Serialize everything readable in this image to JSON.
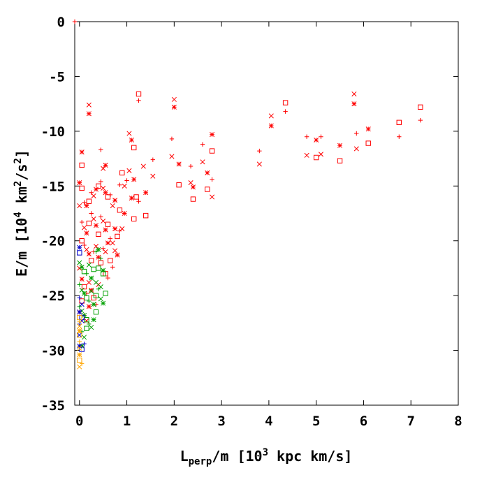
{
  "chart_data": {
    "type": "scatter",
    "title": "",
    "xlabel": {
      "base": "L",
      "sub": "perp",
      "rest": "/m [10",
      "sup": "3",
      "tail": " kpc km/s]"
    },
    "ylabel": {
      "a": "E/m [10",
      "sup1": "4",
      "b": " km",
      "sup2": "2",
      "c": "/s",
      "sup3": "2",
      "d": "]"
    },
    "xlim": [
      -0.1,
      8
    ],
    "ylim": [
      -35,
      0
    ],
    "xticks": [
      0,
      1,
      2,
      3,
      4,
      5,
      6,
      7,
      8
    ],
    "yticks": [
      0,
      -5,
      -10,
      -15,
      -20,
      -25,
      -30,
      -35
    ],
    "grid": false,
    "legend": "none",
    "markers": [
      "plus",
      "cross",
      "star",
      "square"
    ],
    "series": [
      {
        "color": "#ff0000",
        "points": [
          [
            -0.1,
            0
          ],
          [
            0.2,
            -7.6
          ],
          [
            0.2,
            -8.4
          ],
          [
            1.25,
            -6.6
          ],
          [
            1.25,
            -7.2
          ],
          [
            2.0,
            -7.1
          ],
          [
            2.0,
            -7.8
          ],
          [
            4.35,
            -7.4
          ],
          [
            4.35,
            -8.2
          ],
          [
            5.8,
            -6.6
          ],
          [
            5.8,
            -7.5
          ],
          [
            7.2,
            -7.8
          ],
          [
            7.2,
            -9.0
          ],
          [
            4.05,
            -8.6
          ],
          [
            4.05,
            -9.5
          ],
          [
            6.75,
            -9.2
          ],
          [
            6.75,
            -10.5
          ],
          [
            1.05,
            -10.2
          ],
          [
            1.1,
            -10.8
          ],
          [
            1.15,
            -11.5
          ],
          [
            1.95,
            -10.7
          ],
          [
            1.95,
            -12.3
          ],
          [
            2.8,
            -10.3
          ],
          [
            2.8,
            -11.8
          ],
          [
            4.8,
            -10.5
          ],
          [
            4.8,
            -12.2
          ],
          [
            5.0,
            -10.8
          ],
          [
            5.0,
            -12.4
          ],
          [
            5.1,
            -10.5
          ],
          [
            5.1,
            -12.1
          ],
          [
            5.5,
            -11.3
          ],
          [
            5.5,
            -12.7
          ],
          [
            5.85,
            -10.2
          ],
          [
            5.85,
            -11.6
          ],
          [
            6.1,
            -9.8
          ],
          [
            6.1,
            -11.1
          ],
          [
            3.8,
            -11.8
          ],
          [
            3.8,
            -13.0
          ],
          [
            0.05,
            -11.9
          ],
          [
            0.05,
            -13.1
          ],
          [
            0.45,
            -11.7
          ],
          [
            0.5,
            -13.4
          ],
          [
            0.55,
            -13.1
          ],
          [
            0.9,
            -13.8
          ],
          [
            1.0,
            -14.5
          ],
          [
            1.05,
            -13.6
          ],
          [
            1.15,
            -14.4
          ],
          [
            1.2,
            -16.0
          ],
          [
            1.25,
            -16.4
          ],
          [
            1.35,
            -13.2
          ],
          [
            1.4,
            -15.6
          ],
          [
            1.4,
            -17.7
          ],
          [
            1.55,
            -12.6
          ],
          [
            1.55,
            -14.1
          ],
          [
            2.1,
            -13.0
          ],
          [
            2.1,
            -14.9
          ],
          [
            2.35,
            -13.2
          ],
          [
            2.35,
            -14.7
          ],
          [
            2.4,
            -15.1
          ],
          [
            2.4,
            -16.2
          ],
          [
            2.6,
            -11.2
          ],
          [
            2.6,
            -12.8
          ],
          [
            2.7,
            -13.8
          ],
          [
            2.7,
            -15.3
          ],
          [
            2.8,
            -14.4
          ],
          [
            2.8,
            -16.0
          ],
          [
            0.0,
            -14.7
          ],
          [
            0.05,
            -15.2
          ],
          [
            0.1,
            -16.5
          ],
          [
            0.0,
            -16.8
          ],
          [
            0.15,
            -16.8
          ],
          [
            0.2,
            -16.4
          ],
          [
            0.25,
            -15.6
          ],
          [
            0.3,
            -15.9
          ],
          [
            0.35,
            -15.3
          ],
          [
            0.4,
            -15.0
          ],
          [
            0.45,
            -14.6
          ],
          [
            0.5,
            -15.2
          ],
          [
            0.55,
            -15.6
          ],
          [
            0.6,
            -16.0
          ],
          [
            0.65,
            -15.8
          ],
          [
            0.7,
            -16.8
          ],
          [
            0.75,
            -16.3
          ],
          [
            0.85,
            -17.2
          ],
          [
            0.85,
            -14.9
          ],
          [
            0.95,
            -15.0
          ],
          [
            1.1,
            -16.1
          ],
          [
            1.15,
            -18.0
          ],
          [
            0.05,
            -18.3
          ],
          [
            0.1,
            -18.8
          ],
          [
            0.15,
            -19.3
          ],
          [
            0.2,
            -18.4
          ],
          [
            0.25,
            -17.5
          ],
          [
            0.3,
            -18.0
          ],
          [
            0.35,
            -18.6
          ],
          [
            0.4,
            -19.4
          ],
          [
            0.45,
            -17.8
          ],
          [
            0.5,
            -18.2
          ],
          [
            0.55,
            -19.0
          ],
          [
            0.6,
            -18.5
          ],
          [
            0.65,
            -19.8
          ],
          [
            0.7,
            -20.2
          ],
          [
            0.75,
            -18.9
          ],
          [
            0.8,
            -19.6
          ],
          [
            0.85,
            -19.1
          ],
          [
            0.9,
            -18.9
          ],
          [
            0.95,
            -17.5
          ],
          [
            0.05,
            -20.0
          ],
          [
            0.1,
            -20.4
          ],
          [
            0.15,
            -20.8
          ],
          [
            0.2,
            -21.2
          ],
          [
            0.25,
            -21.8
          ],
          [
            0.3,
            -21.0
          ],
          [
            0.35,
            -20.5
          ],
          [
            0.4,
            -21.5
          ],
          [
            0.45,
            -22.0
          ],
          [
            0.5,
            -20.7
          ],
          [
            0.55,
            -21.0
          ],
          [
            0.6,
            -20.2
          ],
          [
            0.65,
            -21.8
          ],
          [
            0.7,
            -22.4
          ],
          [
            0.75,
            -20.9
          ],
          [
            0.8,
            -21.3
          ],
          [
            0.55,
            -23.0
          ],
          [
            0.6,
            -23.4
          ],
          [
            0.0,
            -22.5
          ],
          [
            0.05,
            -23.5
          ],
          [
            0.1,
            -24.2
          ],
          [
            0.15,
            -24.8
          ],
          [
            0.2,
            -23.8
          ],
          [
            0.25,
            -24.5
          ],
          [
            0.3,
            -25.2
          ],
          [
            0.35,
            -25.8
          ],
          [
            0.4,
            -24.0
          ],
          [
            0.0,
            -26.5
          ],
          [
            0.05,
            -25.5
          ],
          [
            0.1,
            -26.8
          ],
          [
            0.15,
            -27.3
          ],
          [
            0.2,
            -26.0
          ]
        ]
      },
      {
        "color": "#00a000",
        "points": [
          [
            0.0,
            -22.0
          ],
          [
            0.05,
            -22.4
          ],
          [
            0.1,
            -22.8
          ],
          [
            0.15,
            -23.0
          ],
          [
            0.2,
            -22.2
          ],
          [
            0.25,
            -23.4
          ],
          [
            0.3,
            -22.6
          ],
          [
            0.35,
            -21.0
          ],
          [
            0.35,
            -23.8
          ],
          [
            0.4,
            -20.8
          ],
          [
            0.4,
            -22.5
          ],
          [
            0.45,
            -21.6
          ],
          [
            0.45,
            -24.2
          ],
          [
            0.5,
            -22.7
          ],
          [
            0.5,
            -23.0
          ],
          [
            0.0,
            -24.0
          ],
          [
            0.05,
            -24.5
          ],
          [
            0.1,
            -24.8
          ],
          [
            0.15,
            -25.2
          ],
          [
            0.2,
            -25.5
          ],
          [
            0.25,
            -24.6
          ],
          [
            0.3,
            -25.8
          ],
          [
            0.35,
            -25.0
          ],
          [
            0.4,
            -24.4
          ],
          [
            0.45,
            -25.3
          ],
          [
            0.5,
            -25.7
          ],
          [
            0.55,
            -24.8
          ],
          [
            0.0,
            -26.0
          ],
          [
            0.05,
            -26.4
          ],
          [
            0.1,
            -26.8
          ],
          [
            0.15,
            -27.2
          ],
          [
            0.2,
            -27.6
          ],
          [
            0.25,
            -27.9
          ],
          [
            0.3,
            -27.2
          ],
          [
            0.35,
            -26.5
          ],
          [
            0.05,
            -28.3
          ],
          [
            0.1,
            -28.8
          ],
          [
            0.05,
            -29.6
          ],
          [
            0.15,
            -28.0
          ]
        ]
      },
      {
        "color": "#0000cc",
        "points": [
          [
            0.0,
            -20.6
          ],
          [
            0.0,
            -21.1
          ],
          [
            0.0,
            -25.2
          ],
          [
            0.05,
            -25.8
          ],
          [
            0.0,
            -26.5
          ],
          [
            0.05,
            -27.0
          ],
          [
            0.0,
            -27.6
          ],
          [
            0.0,
            -28.6
          ],
          [
            0.0,
            -29.6
          ],
          [
            0.05,
            -29.9
          ],
          [
            0.1,
            -29.4
          ],
          [
            0.05,
            -27.3
          ]
        ]
      },
      {
        "color": "#ffa500",
        "points": [
          [
            0.0,
            -27.0
          ],
          [
            0.0,
            -27.4
          ],
          [
            0.0,
            -27.8
          ],
          [
            0.0,
            -28.2
          ],
          [
            0.0,
            -28.6
          ],
          [
            0.0,
            -29.2
          ],
          [
            0.0,
            -29.8
          ],
          [
            0.0,
            -30.4
          ],
          [
            0.0,
            -30.9
          ],
          [
            0.05,
            -31.2
          ],
          [
            0.0,
            -31.5
          ]
        ]
      }
    ]
  }
}
